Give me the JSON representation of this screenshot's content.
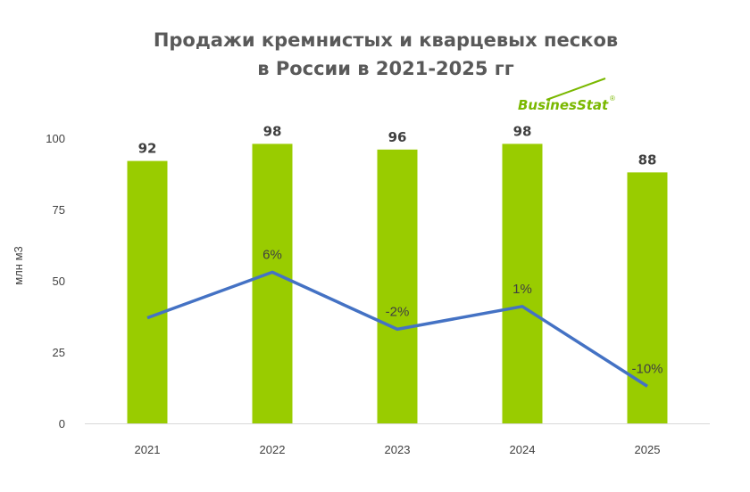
{
  "chart_data": {
    "type": "bar",
    "title_lines": [
      "Продажи кремнистых и кварцевых песков",
      "в России в 2021-2025 гг"
    ],
    "xlabel": "",
    "ylabel": "млн м3",
    "categories": [
      "2021",
      "2022",
      "2023",
      "2024",
      "2025"
    ],
    "ylim": [
      0,
      100
    ],
    "yticks": [
      "0",
      "25",
      "50",
      "75",
      "100"
    ],
    "grid": false,
    "legend": "none",
    "series": [
      {
        "type": "bar",
        "values": [
          92,
          98,
          96,
          98,
          88
        ],
        "labels": [
          "92",
          "98",
          "96",
          "98",
          "88"
        ],
        "color": "#99cc00"
      },
      {
        "type": "line",
        "values": [
          37,
          53,
          33,
          41,
          13
        ],
        "labels": [
          "",
          "6%",
          "-2%",
          "1%",
          "-10%"
        ],
        "color": "#4472c4"
      }
    ]
  },
  "logo": {
    "text": "BusinesStat",
    "mark": "®",
    "color": "#7ab800"
  }
}
